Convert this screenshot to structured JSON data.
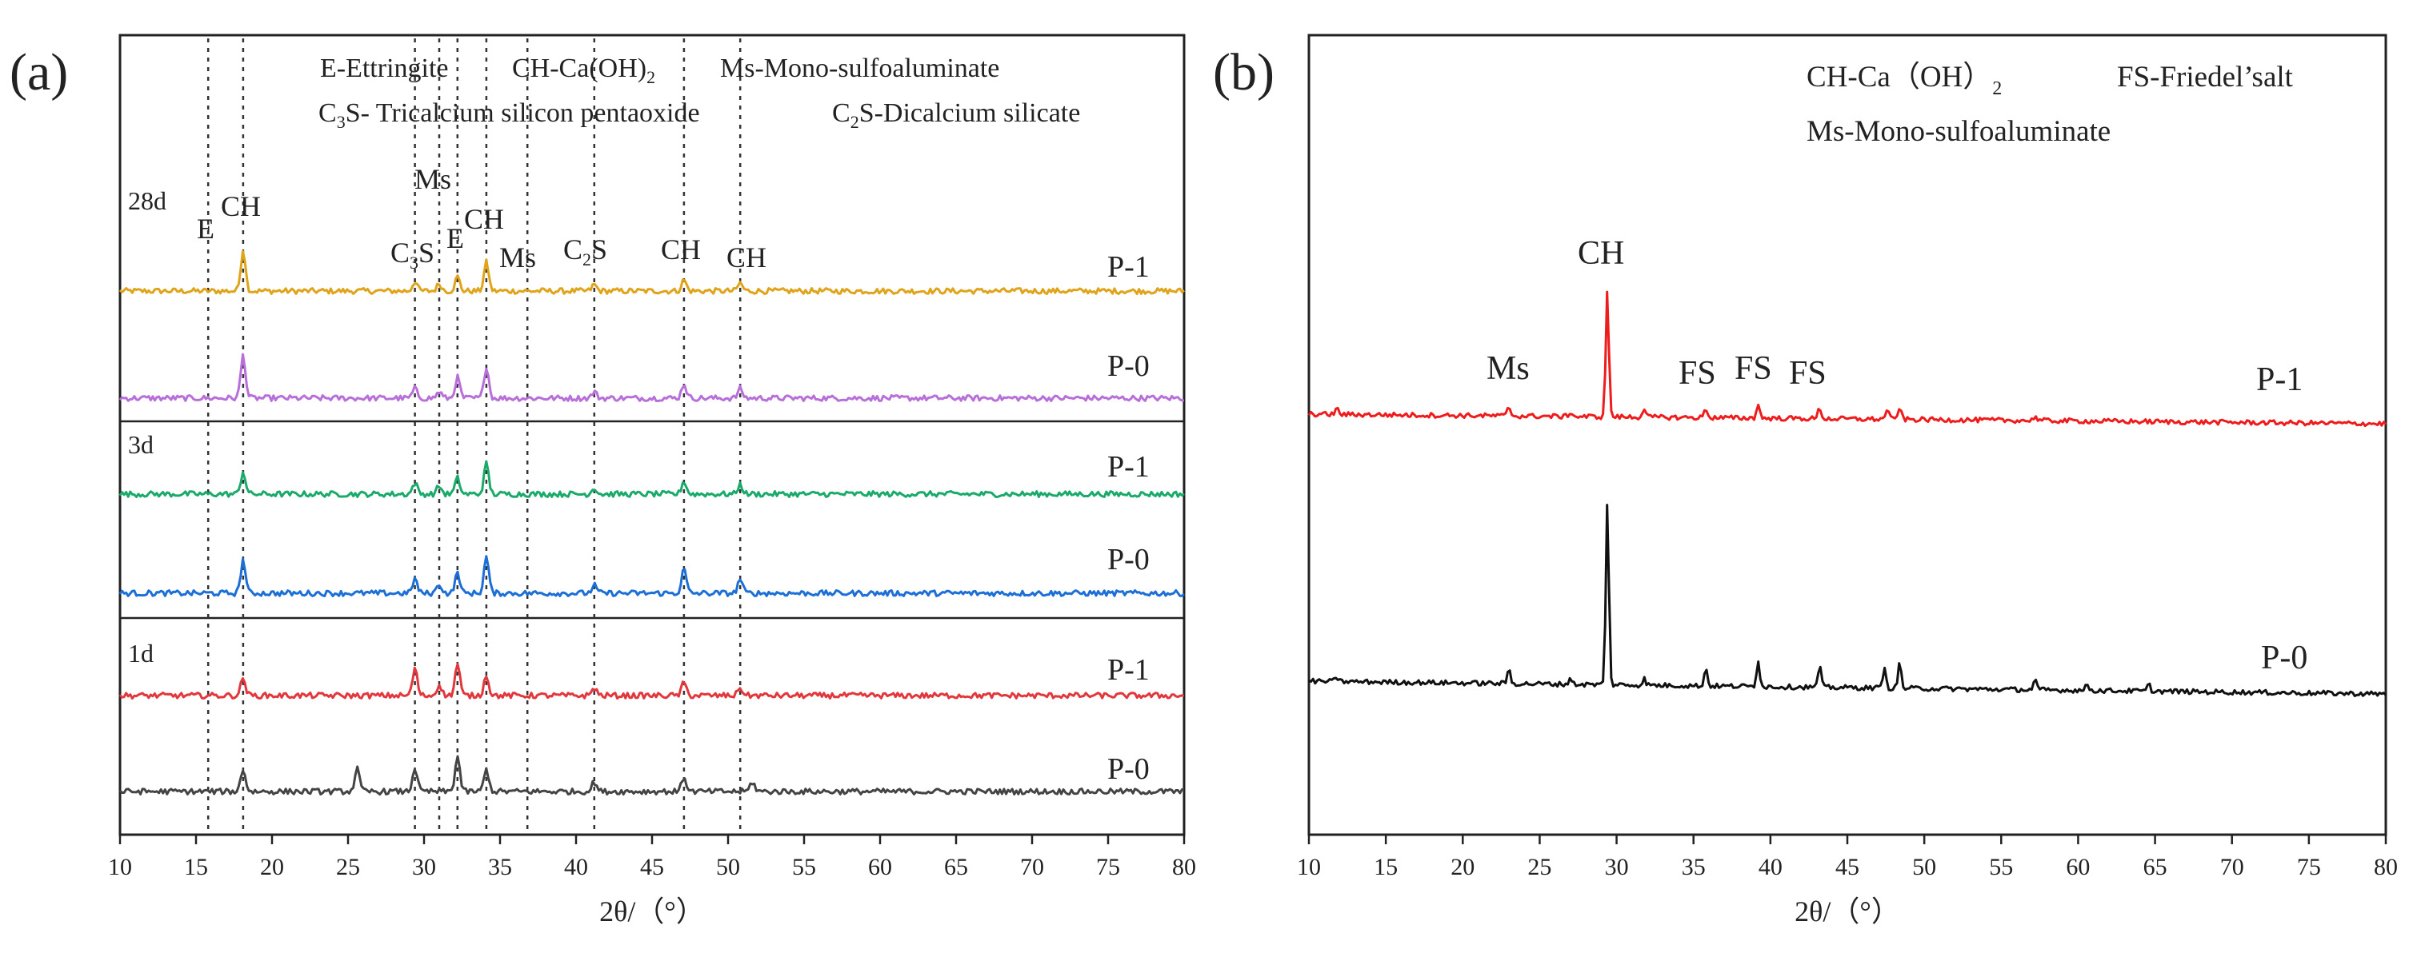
{
  "chart_data": [
    {
      "panel": "(a)",
      "type": "line",
      "xlabel": "2θ/（°）",
      "ylabel": "",
      "xlim": [
        10,
        80
      ],
      "xticks": [
        "10",
        "15",
        "20",
        "25",
        "30",
        "35",
        "40",
        "45",
        "50",
        "55",
        "60",
        "65",
        "70",
        "75",
        "80"
      ],
      "legend": {
        "line1_parts": [
          "E-Ettringite",
          "CH-Ca(OH)",
          "Ms-Mono-sulfoaluminate"
        ],
        "line2_parts": [
          "C",
          "S- Tricalcium silicon pentaoxide",
          "C",
          "S-Dicalcium silicate"
        ],
        "sub3": "3",
        "sub2": "2",
        "sub_ch": "2"
      },
      "reference_lines_2theta": [
        15.8,
        18.1,
        29.4,
        31.0,
        32.2,
        34.1,
        36.8,
        41.2,
        47.1,
        50.8
      ],
      "ages": [
        {
          "label": "28d",
          "peak_labels": [
            {
              "text": "E",
              "x": 15.8
            },
            {
              "text": "CH",
              "x": 18.8
            },
            {
              "text": "C",
              "sub": "3",
              "after": "S",
              "x": 29.2
            },
            {
              "text": "Ms",
              "x": 31.4
            },
            {
              "text": "E",
              "x": 32.2
            },
            {
              "text": "CH",
              "x": 34.2
            },
            {
              "text": "Ms",
              "x": 37.2
            },
            {
              "text": "C",
              "sub": "2",
              "after": "S",
              "x": 41.3
            },
            {
              "text": "CH",
              "x": 47.4
            },
            {
              "text": "CH",
              "x": 51.8
            }
          ],
          "series": [
            {
              "name": "P-1",
              "color": "#e0a41b"
            },
            {
              "name": "P-0",
              "color": "#b86fd9"
            }
          ]
        },
        {
          "label": "3d",
          "peak_labels": [],
          "series": [
            {
              "name": "P-1",
              "color": "#1aaa6a"
            },
            {
              "name": "P-0",
              "color": "#1c6fd6"
            }
          ]
        },
        {
          "label": "1d",
          "peak_labels": [],
          "series": [
            {
              "name": "P-1",
              "color": "#e2373d"
            },
            {
              "name": "P-0",
              "color": "#444444"
            }
          ]
        }
      ],
      "peaks_2theta_intensity": {
        "28d_P-1": [
          [
            18.1,
            52
          ],
          [
            29.4,
            12
          ],
          [
            31.0,
            9
          ],
          [
            32.2,
            18
          ],
          [
            34.1,
            36
          ],
          [
            41.2,
            8
          ],
          [
            47.1,
            14
          ],
          [
            50.8,
            10
          ]
        ],
        "28d_P-0": [
          [
            18.1,
            54
          ],
          [
            29.4,
            12
          ],
          [
            31.0,
            8
          ],
          [
            32.2,
            26
          ],
          [
            34.1,
            40
          ],
          [
            41.2,
            8
          ],
          [
            47.1,
            18
          ],
          [
            50.8,
            12
          ]
        ],
        "3d_P-1": [
          [
            18.1,
            28
          ],
          [
            29.4,
            14
          ],
          [
            31.0,
            10
          ],
          [
            32.2,
            20
          ],
          [
            34.1,
            38
          ],
          [
            41.2,
            8
          ],
          [
            47.1,
            16
          ],
          [
            50.8,
            12
          ]
        ],
        "3d_P-0": [
          [
            18.1,
            42
          ],
          [
            29.4,
            18
          ],
          [
            31.0,
            12
          ],
          [
            32.2,
            26
          ],
          [
            34.1,
            46
          ],
          [
            41.2,
            10
          ],
          [
            47.1,
            30
          ],
          [
            50.8,
            18
          ]
        ],
        "1d_P-1": [
          [
            18.1,
            22
          ],
          [
            29.4,
            34
          ],
          [
            31.0,
            14
          ],
          [
            32.2,
            40
          ],
          [
            34.1,
            26
          ],
          [
            41.2,
            10
          ],
          [
            47.1,
            16
          ],
          [
            50.8,
            10
          ]
        ],
        "1d_P-0": [
          [
            18.1,
            28
          ],
          [
            25.6,
            28
          ],
          [
            29.4,
            30
          ],
          [
            32.2,
            44
          ],
          [
            34.1,
            28
          ],
          [
            41.2,
            12
          ],
          [
            47.1,
            18
          ],
          [
            51.6,
            12
          ]
        ]
      }
    },
    {
      "panel": "(b)",
      "type": "line",
      "xlabel": "2θ/（°）",
      "ylabel": "",
      "xlim": [
        10,
        80
      ],
      "xticks": [
        "10",
        "15",
        "20",
        "25",
        "30",
        "35",
        "40",
        "45",
        "50",
        "55",
        "60",
        "65",
        "70",
        "75",
        "80"
      ],
      "legend": {
        "line1_parts": [
          "CH-Ca（OH）",
          "FS-Friedel’salt"
        ],
        "sub_ch": "2",
        "line2": "Ms-Mono-sulfoaluminate"
      },
      "peak_labels": [
        {
          "text": "Ms",
          "x": 23.0
        },
        {
          "text": "CH",
          "x": 29.4
        },
        {
          "text": "FS",
          "x": 35.8
        },
        {
          "text": "FS",
          "x": 39.2
        },
        {
          "text": "FS",
          "x": 42.6
        }
      ],
      "series": [
        {
          "name": "P-1",
          "color": "#ee1c1c"
        },
        {
          "name": "P-0",
          "color": "#111111"
        }
      ],
      "peaks_2theta_intensity": {
        "P-1": [
          [
            11.8,
            8
          ],
          [
            23.0,
            12
          ],
          [
            27.0,
            6
          ],
          [
            29.4,
            160
          ],
          [
            31.8,
            12
          ],
          [
            35.8,
            12
          ],
          [
            39.2,
            18
          ],
          [
            43.2,
            14
          ],
          [
            47.6,
            14
          ],
          [
            48.4,
            16
          ],
          [
            57.2,
            6
          ]
        ],
        "P-0": [
          [
            11.8,
            6
          ],
          [
            23.0,
            18
          ],
          [
            27.0,
            8
          ],
          [
            29.4,
            230
          ],
          [
            31.8,
            8
          ],
          [
            35.8,
            22
          ],
          [
            39.2,
            34
          ],
          [
            43.2,
            28
          ],
          [
            47.4,
            26
          ],
          [
            48.4,
            32
          ],
          [
            57.2,
            12
          ],
          [
            60.6,
            8
          ],
          [
            64.6,
            8
          ]
        ]
      }
    }
  ]
}
